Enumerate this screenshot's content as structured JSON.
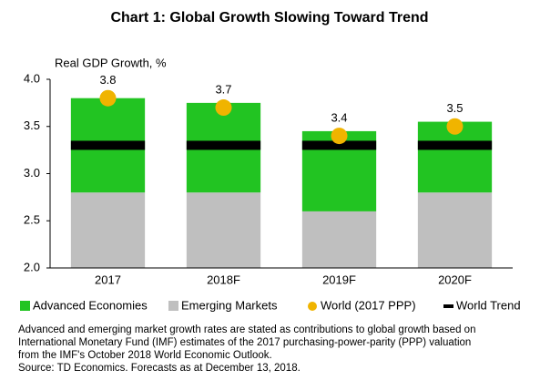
{
  "chart_data": {
    "type": "bar",
    "title": "Chart 1: Global Growth Slowing Toward Trend",
    "y_label": "Real GDP Growth, %",
    "categories": [
      "2017",
      "2018F",
      "2019F",
      "2020F"
    ],
    "series": [
      {
        "name": "Advanced Economies",
        "color": "#22c422",
        "marker": "bar",
        "values": [
          1.0,
          0.95,
          0.85,
          0.75
        ]
      },
      {
        "name": "Emerging Markets",
        "color": "#bfbfbf",
        "marker": "bar",
        "values": [
          2.8,
          2.8,
          2.6,
          2.8
        ]
      },
      {
        "name": "World (2017 PPP)",
        "color": "#f0b400",
        "marker": "dot",
        "values": [
          3.8,
          3.7,
          3.4,
          3.5
        ]
      },
      {
        "name": "World Trend",
        "color": "#000000",
        "marker": "dash",
        "values": [
          3.3,
          3.3,
          3.3,
          3.3
        ]
      }
    ],
    "ylim": [
      2.0,
      4.0
    ],
    "yticks": [
      {
        "value": 2.0,
        "label": "2.0"
      },
      {
        "value": 2.5,
        "label": "2.5"
      },
      {
        "value": 3.0,
        "label": "3.0"
      },
      {
        "value": 3.5,
        "label": "3.5"
      },
      {
        "value": 4.0,
        "label": "4.0"
      }
    ],
    "notes": [
      "Advanced and emerging market growth rates are stated as contributions to global growth based on",
      "International Monetary Fund (IMF) estimates of the 2017 purchasing-power-parity (PPP) valuation",
      "from the IMF's October 2018 World Economic Outlook.",
      "Source: TD Economics. Forecasts as at December 13, 2018."
    ]
  }
}
